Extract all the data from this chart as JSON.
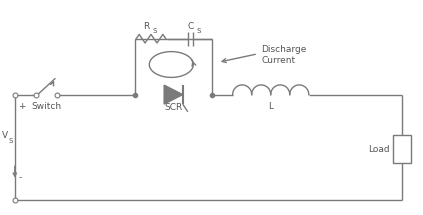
{
  "bg_color": "#ffffff",
  "line_color": "#7a7a7a",
  "text_color": "#555555",
  "fig_width": 4.23,
  "fig_height": 2.15,
  "dpi": 100,
  "labels": {
    "switch": "Switch",
    "scr": "SCR",
    "L": "L",
    "load": "Load",
    "vs": "V",
    "vs_sub": "S",
    "rs": "R",
    "rs_sub": "S",
    "cs": "C",
    "cs_sub": "S",
    "discharge": "Discharge\nCurrent",
    "plus": "+",
    "minus": "-"
  }
}
